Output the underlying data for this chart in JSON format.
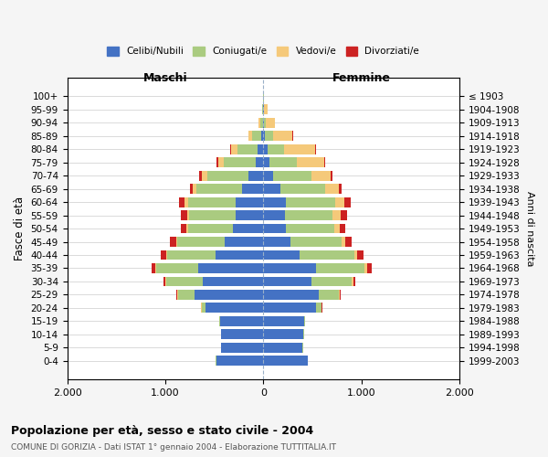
{
  "age_groups": [
    "0-4",
    "5-9",
    "10-14",
    "15-19",
    "20-24",
    "25-29",
    "30-34",
    "35-39",
    "40-44",
    "45-49",
    "50-54",
    "55-59",
    "60-64",
    "65-69",
    "70-74",
    "75-79",
    "80-84",
    "85-89",
    "90-94",
    "95-99",
    "100+"
  ],
  "birth_years": [
    "1999-2003",
    "1994-1998",
    "1989-1993",
    "1984-1988",
    "1979-1983",
    "1974-1978",
    "1969-1973",
    "1964-1968",
    "1959-1963",
    "1954-1958",
    "1949-1953",
    "1944-1948",
    "1939-1943",
    "1934-1938",
    "1929-1933",
    "1924-1928",
    "1919-1923",
    "1914-1918",
    "1909-1913",
    "1904-1908",
    "≤ 1903"
  ],
  "maschi": {
    "celibi": [
      480,
      430,
      430,
      440,
      590,
      700,
      620,
      660,
      490,
      390,
      310,
      280,
      280,
      220,
      150,
      80,
      60,
      20,
      5,
      2,
      1
    ],
    "coniugati": [
      5,
      5,
      5,
      10,
      40,
      170,
      370,
      430,
      490,
      490,
      460,
      480,
      490,
      460,
      420,
      320,
      200,
      90,
      25,
      8,
      2
    ],
    "vedovi": [
      0,
      0,
      0,
      0,
      5,
      5,
      10,
      10,
      10,
      10,
      15,
      20,
      30,
      40,
      60,
      60,
      70,
      40,
      15,
      5,
      2
    ],
    "divorziati": [
      0,
      0,
      0,
      0,
      5,
      10,
      20,
      40,
      60,
      60,
      60,
      60,
      60,
      30,
      20,
      15,
      5,
      5,
      2,
      1,
      0
    ]
  },
  "femmine": {
    "nubili": [
      450,
      400,
      410,
      420,
      540,
      570,
      490,
      540,
      370,
      280,
      230,
      220,
      230,
      170,
      100,
      60,
      40,
      20,
      10,
      5,
      2
    ],
    "coniugate": [
      5,
      5,
      5,
      10,
      50,
      200,
      410,
      490,
      560,
      520,
      490,
      490,
      500,
      460,
      390,
      280,
      170,
      80,
      20,
      6,
      1
    ],
    "vedove": [
      0,
      0,
      0,
      0,
      5,
      10,
      20,
      25,
      30,
      40,
      60,
      80,
      100,
      140,
      200,
      280,
      320,
      200,
      90,
      30,
      8
    ],
    "divorziate": [
      0,
      0,
      0,
      0,
      5,
      10,
      20,
      50,
      60,
      60,
      60,
      60,
      60,
      30,
      20,
      10,
      5,
      5,
      2,
      1,
      0
    ]
  },
  "colors": {
    "celibi_nubili": "#4472C4",
    "coniugati": "#AACB80",
    "vedovi": "#F5C97A",
    "divorziati": "#CC2222"
  },
  "xlim": [
    -2000,
    2000
  ],
  "xticks": [
    -2000,
    -1000,
    0,
    1000,
    2000
  ],
  "xticklabels": [
    "2.000",
    "1.000",
    "0",
    "1.000",
    "2.000"
  ],
  "title": "Popolazione per età, sesso e stato civile - 2004",
  "subtitle": "COMUNE DI GORIZIA - Dati ISTAT 1° gennaio 2004 - Elaborazione TUTTITALIA.IT",
  "ylabel": "Fasce di età",
  "ylabel_right": "Anni di nascita",
  "maschi_label": "Maschi",
  "femmine_label": "Femmine",
  "legend_labels": [
    "Celibi/Nubili",
    "Coniugati/e",
    "Vedovi/e",
    "Divorziati/e"
  ],
  "background_color": "#f5f5f5",
  "plot_bg_color": "#ffffff"
}
